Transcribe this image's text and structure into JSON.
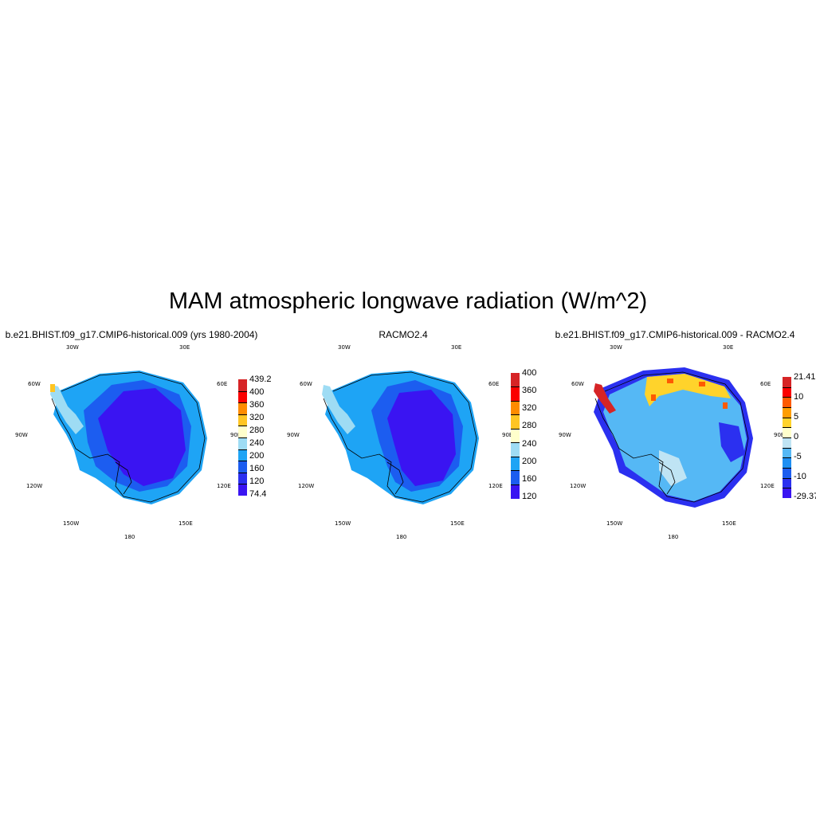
{
  "figure": {
    "title": "MAM atmospheric longwave radiation (W/m^2)"
  },
  "longitude_labels": {
    "l30w": "30W",
    "l30e": "30E",
    "l60w": "60W",
    "l60e": "60E",
    "l90w": "90W",
    "l90e": "90E",
    "l120w": "120W",
    "l120e": "120E",
    "l150w": "150W",
    "l150e": "150E",
    "l180": "180"
  },
  "panels": [
    {
      "title": "b.e21.BHIST.f09_g17.CMIP6-historical.009 (yrs 1980-2004)",
      "colorbar": {
        "labels": [
          "439.2",
          "400",
          "360",
          "320",
          "280",
          "240",
          "200",
          "160",
          "120",
          "74.4"
        ],
        "colors": [
          "#d62426",
          "#fb0000",
          "#fe8b00",
          "#ffc523",
          "#ffffcc",
          "#9edcf4",
          "#1ea4f5",
          "#1c5df0",
          "#2b30f0",
          "#3a14f2"
        ]
      }
    },
    {
      "title": "RACMO2.4",
      "colorbar": {
        "labels": [
          "400",
          "360",
          "320",
          "280",
          "240",
          "200",
          "160",
          "120"
        ],
        "colors": [
          "#d62426",
          "#fb0000",
          "#fe8b00",
          "#ffc523",
          "#ffffcc",
          "#9edcf4",
          "#1ea4f5",
          "#1c5df0",
          "#3a14f2"
        ]
      }
    },
    {
      "title": "b.e21.BHIST.f09_g17.CMIP6-historical.009 - RACMO2.4",
      "colorbar": {
        "labels": [
          "21.41",
          "10",
          "5",
          "0",
          "-5",
          "-10",
          "-29.37"
        ],
        "colors": [
          "#d62426",
          "#fb0000",
          "#fe5a00",
          "#fe9d00",
          "#ffd32b",
          "#ffffcc",
          "#bfe4f4",
          "#55b8f5",
          "#1e8ff3",
          "#1c5df0",
          "#2b30f0",
          "#3a14f2"
        ]
      }
    }
  ]
}
